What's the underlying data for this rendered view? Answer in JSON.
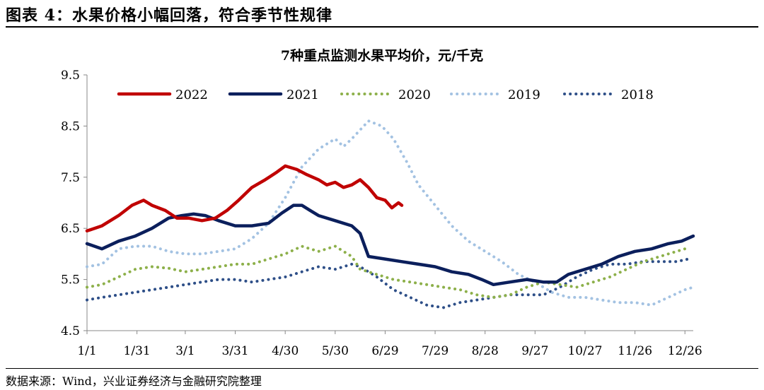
{
  "figure": {
    "title": "图表 4：水果价格小幅回落，符合季节性规律",
    "source": "数据来源：Wind，兴业证券经济与金融研究院整理"
  },
  "chart_data": {
    "type": "line",
    "title": "7种重点监测水果平均价，元/千克",
    "xlabel": "",
    "ylabel": "",
    "ylim": [
      4.5,
      9.5
    ],
    "xlim": [
      1,
      365
    ],
    "yticks": [
      "4.5",
      "5.5",
      "6.5",
      "7.5",
      "8.5",
      "9.5"
    ],
    "xtick_labels": [
      "1/1",
      "1/31",
      "3/1",
      "3/31",
      "4/30",
      "5/30",
      "6/29",
      "7/29",
      "8/28",
      "9/27",
      "10/27",
      "11/26",
      "12/26"
    ],
    "xtick_days": [
      1,
      31,
      60,
      90,
      120,
      150,
      180,
      210,
      240,
      270,
      300,
      330,
      360
    ],
    "grid": false,
    "legend_position": "top",
    "series": [
      {
        "name": "2022",
        "style": "solid",
        "color": "#c00000",
        "points": [
          [
            1,
            6.45
          ],
          [
            10,
            6.55
          ],
          [
            20,
            6.75
          ],
          [
            28,
            6.95
          ],
          [
            35,
            7.05
          ],
          [
            40,
            6.95
          ],
          [
            48,
            6.85
          ],
          [
            55,
            6.7
          ],
          [
            62,
            6.7
          ],
          [
            70,
            6.65
          ],
          [
            78,
            6.7
          ],
          [
            85,
            6.85
          ],
          [
            92,
            7.05
          ],
          [
            100,
            7.3
          ],
          [
            108,
            7.45
          ],
          [
            115,
            7.6
          ],
          [
            120,
            7.72
          ],
          [
            127,
            7.65
          ],
          [
            133,
            7.55
          ],
          [
            140,
            7.45
          ],
          [
            145,
            7.35
          ],
          [
            150,
            7.4
          ],
          [
            155,
            7.3
          ],
          [
            160,
            7.35
          ],
          [
            165,
            7.45
          ],
          [
            170,
            7.3
          ],
          [
            175,
            7.1
          ],
          [
            180,
            7.05
          ],
          [
            184,
            6.9
          ],
          [
            188,
            7.0
          ],
          [
            190,
            6.95
          ]
        ]
      },
      {
        "name": "2021",
        "style": "solid",
        "color": "#0b1f5c",
        "points": [
          [
            1,
            6.2
          ],
          [
            10,
            6.1
          ],
          [
            20,
            6.25
          ],
          [
            30,
            6.35
          ],
          [
            40,
            6.5
          ],
          [
            50,
            6.7
          ],
          [
            58,
            6.75
          ],
          [
            65,
            6.78
          ],
          [
            72,
            6.75
          ],
          [
            80,
            6.65
          ],
          [
            90,
            6.55
          ],
          [
            100,
            6.55
          ],
          [
            110,
            6.6
          ],
          [
            118,
            6.8
          ],
          [
            125,
            6.95
          ],
          [
            130,
            6.95
          ],
          [
            135,
            6.85
          ],
          [
            140,
            6.75
          ],
          [
            150,
            6.65
          ],
          [
            160,
            6.55
          ],
          [
            165,
            6.4
          ],
          [
            170,
            5.95
          ],
          [
            180,
            5.9
          ],
          [
            190,
            5.85
          ],
          [
            200,
            5.8
          ],
          [
            210,
            5.75
          ],
          [
            220,
            5.65
          ],
          [
            230,
            5.6
          ],
          [
            238,
            5.5
          ],
          [
            245,
            5.4
          ],
          [
            255,
            5.45
          ],
          [
            265,
            5.5
          ],
          [
            275,
            5.45
          ],
          [
            283,
            5.45
          ],
          [
            290,
            5.6
          ],
          [
            300,
            5.7
          ],
          [
            310,
            5.8
          ],
          [
            320,
            5.95
          ],
          [
            330,
            6.05
          ],
          [
            340,
            6.1
          ],
          [
            350,
            6.2
          ],
          [
            358,
            6.25
          ],
          [
            365,
            6.35
          ]
        ]
      },
      {
        "name": "2020",
        "style": "dotted",
        "color": "#8db04a",
        "points": [
          [
            1,
            5.35
          ],
          [
            10,
            5.4
          ],
          [
            20,
            5.55
          ],
          [
            30,
            5.7
          ],
          [
            40,
            5.75
          ],
          [
            50,
            5.72
          ],
          [
            60,
            5.65
          ],
          [
            70,
            5.7
          ],
          [
            80,
            5.75
          ],
          [
            90,
            5.8
          ],
          [
            100,
            5.8
          ],
          [
            110,
            5.9
          ],
          [
            120,
            6.0
          ],
          [
            130,
            6.15
          ],
          [
            140,
            6.05
          ],
          [
            150,
            6.15
          ],
          [
            160,
            5.95
          ],
          [
            165,
            5.7
          ],
          [
            175,
            5.6
          ],
          [
            185,
            5.5
          ],
          [
            195,
            5.45
          ],
          [
            205,
            5.4
          ],
          [
            215,
            5.35
          ],
          [
            225,
            5.3
          ],
          [
            235,
            5.2
          ],
          [
            245,
            5.15
          ],
          [
            255,
            5.2
          ],
          [
            265,
            5.35
          ],
          [
            275,
            5.45
          ],
          [
            285,
            5.4
          ],
          [
            295,
            5.35
          ],
          [
            305,
            5.45
          ],
          [
            315,
            5.55
          ],
          [
            325,
            5.7
          ],
          [
            335,
            5.85
          ],
          [
            345,
            5.95
          ],
          [
            355,
            6.05
          ],
          [
            360,
            6.1
          ]
        ]
      },
      {
        "name": "2019",
        "style": "dotted",
        "color": "#a3c2e2",
        "points": [
          [
            1,
            5.75
          ],
          [
            10,
            5.8
          ],
          [
            20,
            6.1
          ],
          [
            30,
            6.15
          ],
          [
            40,
            6.15
          ],
          [
            50,
            6.05
          ],
          [
            60,
            6.0
          ],
          [
            70,
            6.0
          ],
          [
            80,
            6.05
          ],
          [
            90,
            6.1
          ],
          [
            100,
            6.3
          ],
          [
            110,
            6.6
          ],
          [
            120,
            7.1
          ],
          [
            130,
            7.7
          ],
          [
            140,
            8.05
          ],
          [
            150,
            8.25
          ],
          [
            155,
            8.1
          ],
          [
            160,
            8.25
          ],
          [
            170,
            8.6
          ],
          [
            178,
            8.5
          ],
          [
            185,
            8.25
          ],
          [
            193,
            7.8
          ],
          [
            200,
            7.35
          ],
          [
            210,
            6.95
          ],
          [
            220,
            6.55
          ],
          [
            230,
            6.25
          ],
          [
            240,
            6.05
          ],
          [
            250,
            5.85
          ],
          [
            260,
            5.6
          ],
          [
            270,
            5.45
          ],
          [
            280,
            5.25
          ],
          [
            290,
            5.15
          ],
          [
            300,
            5.15
          ],
          [
            310,
            5.1
          ],
          [
            320,
            5.05
          ],
          [
            330,
            5.05
          ],
          [
            340,
            5.0
          ],
          [
            350,
            5.15
          ],
          [
            360,
            5.3
          ],
          [
            365,
            5.35
          ]
        ]
      },
      {
        "name": "2018",
        "style": "dotted",
        "color": "#2e4f88",
        "points": [
          [
            1,
            5.1
          ],
          [
            10,
            5.15
          ],
          [
            20,
            5.2
          ],
          [
            30,
            5.25
          ],
          [
            40,
            5.3
          ],
          [
            50,
            5.35
          ],
          [
            60,
            5.4
          ],
          [
            70,
            5.45
          ],
          [
            80,
            5.5
          ],
          [
            90,
            5.5
          ],
          [
            100,
            5.45
          ],
          [
            110,
            5.5
          ],
          [
            120,
            5.55
          ],
          [
            130,
            5.65
          ],
          [
            140,
            5.75
          ],
          [
            150,
            5.7
          ],
          [
            160,
            5.8
          ],
          [
            165,
            5.75
          ],
          [
            175,
            5.55
          ],
          [
            185,
            5.3
          ],
          [
            195,
            5.15
          ],
          [
            205,
            5.0
          ],
          [
            215,
            4.95
          ],
          [
            225,
            5.05
          ],
          [
            235,
            5.1
          ],
          [
            245,
            5.15
          ],
          [
            255,
            5.2
          ],
          [
            265,
            5.2
          ],
          [
            275,
            5.2
          ],
          [
            285,
            5.35
          ],
          [
            295,
            5.55
          ],
          [
            305,
            5.7
          ],
          [
            315,
            5.8
          ],
          [
            325,
            5.8
          ],
          [
            335,
            5.85
          ],
          [
            345,
            5.85
          ],
          [
            355,
            5.85
          ],
          [
            362,
            5.9
          ]
        ]
      }
    ]
  }
}
